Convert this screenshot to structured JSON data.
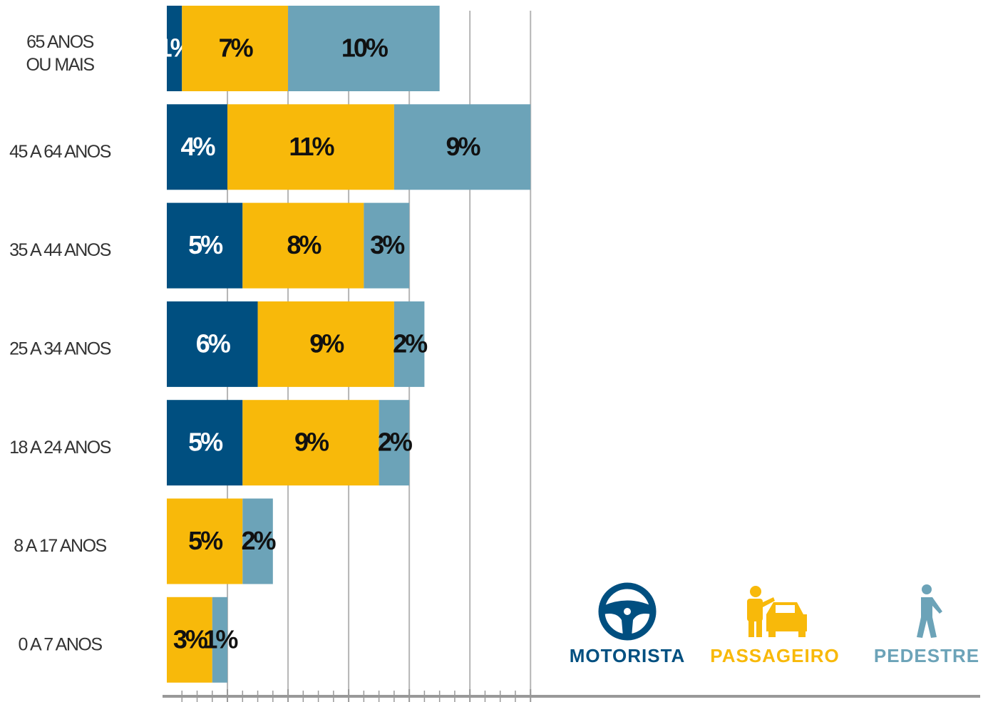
{
  "chart_data": {
    "type": "stacked_barh",
    "categories": [
      "65 ANOS\nOU MAIS",
      "45 A 64 ANOS",
      "35 A 44 ANOS",
      "25 A 34 ANOS",
      "18 A 24 ANOS",
      "8 A 17 ANOS",
      "0 A 7 ANOS"
    ],
    "series": [
      {
        "name": "MOTORISTA",
        "color": "#004f80",
        "label_color": "#ffffff",
        "values": [
          1,
          4,
          5,
          6,
          5,
          null,
          null
        ],
        "value_labels": [
          "1%",
          "4%",
          "5%",
          "6%",
          "5%",
          null,
          null
        ]
      },
      {
        "name": "PASSAGEIRO",
        "color": "#f8b90a",
        "label_color": "#111111",
        "values": [
          7,
          11,
          8,
          9,
          9,
          5,
          3
        ],
        "value_labels": [
          "7%",
          "11%",
          "8%",
          "9%",
          "9%",
          "5%",
          "3%"
        ]
      },
      {
        "name": "PEDESTRE",
        "color": "#6ca3b8",
        "label_color": "#111111",
        "values": [
          10,
          9,
          3,
          2,
          2,
          2,
          1
        ],
        "value_labels": [
          "10%",
          "9%",
          "3%",
          "2%",
          "2%",
          "2%",
          "1%"
        ]
      }
    ],
    "xlim": [
      0,
      27
    ],
    "xticks": [
      4,
      8,
      12,
      16,
      20,
      24
    ],
    "xminorticks": [
      1,
      2,
      3,
      5,
      6,
      7,
      9,
      10,
      11,
      13,
      14,
      15,
      17,
      18,
      19,
      21,
      22,
      23
    ],
    "grid": true,
    "legend": "lower right"
  }
}
